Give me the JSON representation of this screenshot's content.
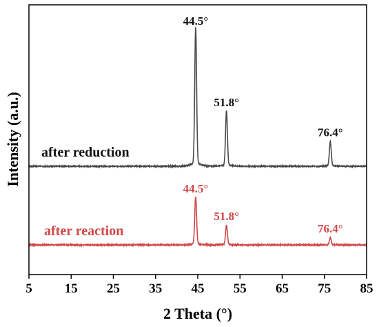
{
  "chart_data": {
    "type": "line",
    "xlabel": "2 Theta (°)",
    "ylabel": "Intensity (a.u.)",
    "xlim": [
      5,
      85
    ],
    "xticks": [
      5,
      15,
      25,
      35,
      45,
      55,
      65,
      75,
      85
    ],
    "yticks_shown": false,
    "grid": false,
    "legend": "none",
    "series": [
      {
        "name": "after reduction",
        "color": "#4a4a4a",
        "baseline": 0.0,
        "noise": 0.6,
        "peaks": [
          {
            "x": 44.5,
            "height": 100,
            "width": 0.22,
            "label": "44.5°"
          },
          {
            "x": 51.8,
            "height": 40,
            "width": 0.22,
            "label": "51.8°"
          },
          {
            "x": 76.4,
            "height": 18,
            "width": 0.22,
            "label": "76.4°"
          }
        ]
      },
      {
        "name": "after reaction",
        "color": "#d04848",
        "baseline": 0.0,
        "noise": 0.7,
        "peaks": [
          {
            "x": 44.5,
            "height": 34,
            "width": 0.22,
            "label": "44.5°"
          },
          {
            "x": 51.8,
            "height": 14,
            "width": 0.22,
            "label": "51.8°"
          },
          {
            "x": 76.4,
            "height": 5,
            "width": 0.22,
            "label": "76.4°"
          }
        ]
      }
    ]
  }
}
